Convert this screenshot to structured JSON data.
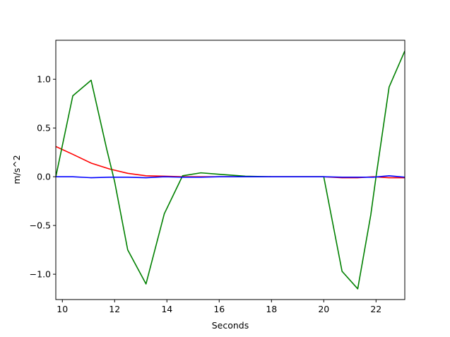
{
  "chart_data": {
    "type": "line",
    "title": "",
    "xlabel": "Seconds",
    "ylabel": "m/s^2",
    "xlim": [
      9.75,
      23.1
    ],
    "ylim": [
      -1.26,
      1.4
    ],
    "xticks": [
      10,
      12,
      14,
      16,
      18,
      20,
      22
    ],
    "yticks": [
      -1.0,
      -0.5,
      0.0,
      0.5,
      1.0
    ],
    "ytick_labels": [
      "−1.0",
      "−0.5",
      "0.0",
      "0.5",
      "1.0"
    ],
    "grid": false,
    "legend": "none",
    "series": [
      {
        "color": "#ff0000",
        "x": [
          9.75,
          10.4,
          11.1,
          11.8,
          12.5,
          13.2,
          13.9,
          14.6,
          15.3,
          16.0,
          17.0,
          18.0,
          19.0,
          20.0,
          20.7,
          21.3,
          21.9,
          22.5,
          23.1
        ],
        "y": [
          0.31,
          0.23,
          0.14,
          0.08,
          0.035,
          0.01,
          0.005,
          0.0,
          0.0,
          0.0,
          0.0,
          0.0,
          0.0,
          0.0,
          -0.01,
          -0.01,
          0.0,
          -0.01,
          -0.01
        ]
      },
      {
        "color": "#008000",
        "x": [
          9.75,
          10.4,
          11.1,
          11.7,
          12.0,
          12.5,
          13.2,
          13.9,
          14.6,
          15.3,
          16.0,
          17.0,
          18.0,
          19.0,
          20.0,
          20.7,
          21.3,
          21.8,
          22.0,
          22.5,
          23.1
        ],
        "y": [
          0.0,
          0.83,
          0.99,
          0.28,
          -0.05,
          -0.75,
          -1.1,
          -0.38,
          0.01,
          0.04,
          0.025,
          0.005,
          0.0,
          0.0,
          0.0,
          -0.97,
          -1.15,
          -0.39,
          0.0,
          0.92,
          1.29
        ]
      },
      {
        "color": "#0000ff",
        "x": [
          9.75,
          10.4,
          11.1,
          11.8,
          12.5,
          13.2,
          13.9,
          14.6,
          15.3,
          16.0,
          17.0,
          18.0,
          19.0,
          20.0,
          20.7,
          21.3,
          21.9,
          22.5,
          23.1
        ],
        "y": [
          0.0,
          0.0,
          -0.01,
          -0.005,
          -0.005,
          -0.01,
          0.0,
          -0.005,
          -0.005,
          0.0,
          0.0,
          0.0,
          0.0,
          0.0,
          -0.005,
          -0.005,
          -0.005,
          0.01,
          -0.005
        ]
      }
    ]
  }
}
